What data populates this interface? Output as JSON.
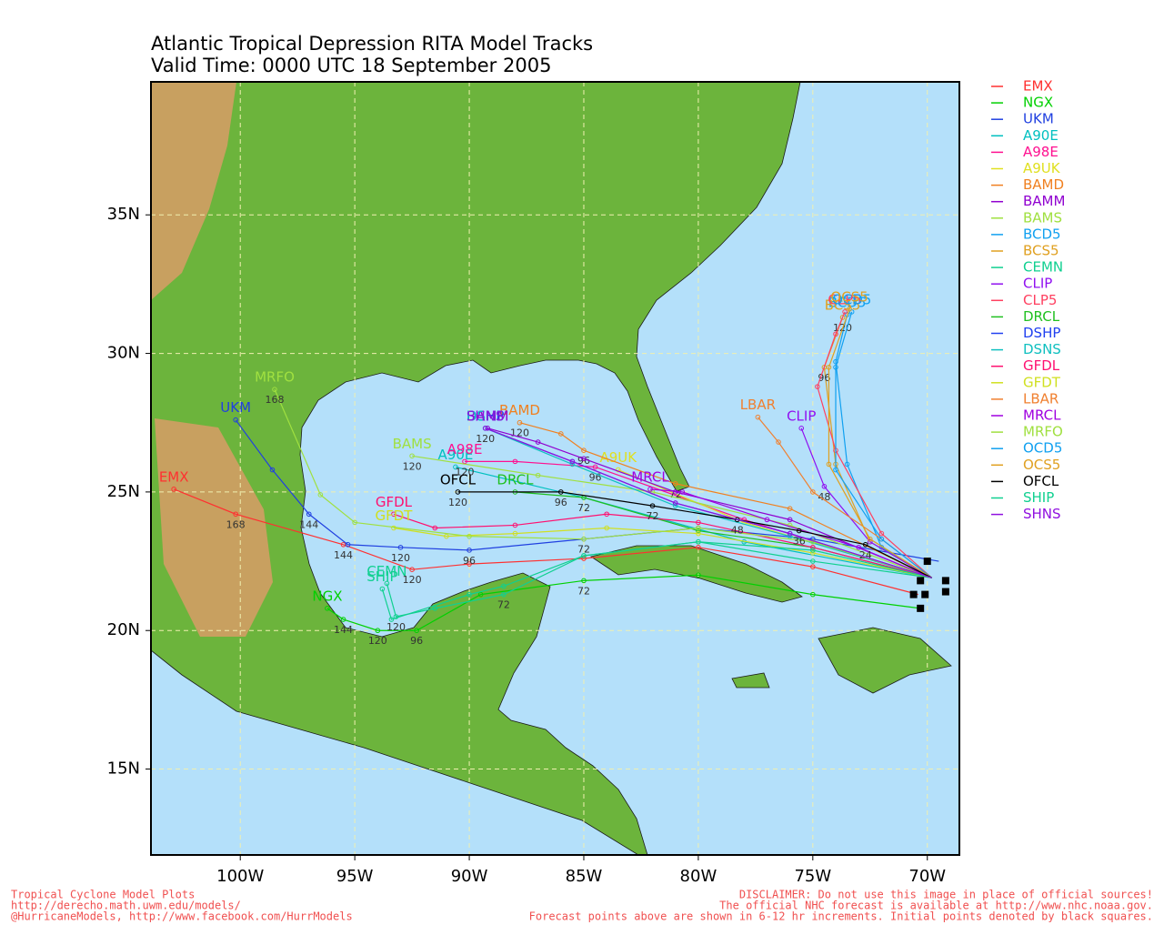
{
  "map": {
    "title": "Atlantic Tropical Depression RITA Model Tracks",
    "subtitle": "Valid Time: 0000 UTC 18 September 2005",
    "xlim": [
      -103.9,
      -68.6
    ],
    "ylim": [
      11.9,
      39.8
    ],
    "xticks": [
      {
        "value": -100,
        "label": "100W"
      },
      {
        "value": -95,
        "label": "95W"
      },
      {
        "value": -90,
        "label": "90W"
      },
      {
        "value": -85,
        "label": "85W"
      },
      {
        "value": -80,
        "label": "80W"
      },
      {
        "value": -75,
        "label": "75W"
      },
      {
        "value": -70,
        "label": "70W"
      }
    ],
    "yticks": [
      {
        "value": 15,
        "label": "15N"
      },
      {
        "value": 20,
        "label": "20N"
      },
      {
        "value": 25,
        "label": "25N"
      },
      {
        "value": 30,
        "label": "30N"
      },
      {
        "value": 35,
        "label": "35N"
      }
    ],
    "initial_points": [
      [
        -70.3,
        20.8
      ],
      [
        -70.1,
        21.3
      ],
      [
        -70.6,
        21.3
      ],
      [
        -69.2,
        21.4
      ],
      [
        -69.2,
        21.8
      ],
      [
        -70.3,
        21.8
      ],
      [
        -70.0,
        22.5
      ]
    ],
    "tracks": [
      {
        "name": "EMX",
        "color": "#ff3030",
        "points": [
          {
            "lon": -70.4,
            "lat": 21.3
          },
          {
            "lon": -75,
            "lat": 22.3
          },
          {
            "lon": -80,
            "lat": 23.0
          },
          {
            "lon": -85,
            "lat": 22.6
          },
          {
            "lon": -90,
            "lat": 22.4
          },
          {
            "lon": -92.5,
            "lat": 22.2,
            "hour": 120
          },
          {
            "lon": -95.5,
            "lat": 23.1,
            "hour": 144
          },
          {
            "lon": -100.2,
            "lat": 24.2,
            "hour": 168
          },
          {
            "lon": -102.9,
            "lat": 25.1
          }
        ]
      },
      {
        "name": "NGX",
        "color": "#00d000",
        "points": [
          {
            "lon": -70.3,
            "lat": 20.8
          },
          {
            "lon": -75,
            "lat": 21.3
          },
          {
            "lon": -80,
            "lat": 22.0
          },
          {
            "lon": -85,
            "lat": 21.8,
            "hour": 72
          },
          {
            "lon": -89.5,
            "lat": 21.3
          },
          {
            "lon": -92.3,
            "lat": 20.0,
            "hour": 96
          },
          {
            "lon": -94,
            "lat": 20.0,
            "hour": 120
          },
          {
            "lon": -95.5,
            "lat": 20.4,
            "hour": 144
          },
          {
            "lon": -96.2,
            "lat": 20.8
          }
        ]
      },
      {
        "name": "UKM",
        "color": "#2040e0",
        "points": [
          {
            "lon": -69.5,
            "lat": 22.5
          },
          {
            "lon": -75,
            "lat": 23.3
          },
          {
            "lon": -80,
            "lat": 23.7
          },
          {
            "lon": -85,
            "lat": 23.3,
            "hour": 72
          },
          {
            "lon": -90,
            "lat": 22.9,
            "hour": 96
          },
          {
            "lon": -93,
            "lat": 23.0,
            "hour": 120
          },
          {
            "lon": -95.3,
            "lat": 23.1
          },
          {
            "lon": -97,
            "lat": 24.2,
            "hour": 144
          },
          {
            "lon": -98.6,
            "lat": 25.8
          },
          {
            "lon": -100.2,
            "lat": 27.6
          }
        ]
      },
      {
        "name": "A90E",
        "color": "#00c0c0",
        "points": [
          {
            "lon": -69.8,
            "lat": 21.9
          },
          {
            "lon": -78,
            "lat": 23.2
          },
          {
            "lon": -85,
            "lat": 24.8,
            "hour": 72
          },
          {
            "lon": -90.6,
            "lat": 25.9
          }
        ]
      },
      {
        "name": "A98E",
        "color": "#ff1090",
        "points": [
          {
            "lon": -69.8,
            "lat": 21.9
          },
          {
            "lon": -78,
            "lat": 24.0
          },
          {
            "lon": -84.5,
            "lat": 25.9,
            "hour": 96
          },
          {
            "lon": -88,
            "lat": 26.1
          },
          {
            "lon": -90.2,
            "lat": 26.1,
            "hour": 120
          }
        ]
      },
      {
        "name": "A9UK",
        "color": "#e0e020",
        "points": [
          {
            "lon": -69.8,
            "lat": 21.9
          },
          {
            "lon": -78,
            "lat": 23.9
          },
          {
            "lon": -83.5,
            "lat": 25.8
          }
        ]
      },
      {
        "name": "BAMD",
        "color": "#f08020",
        "points": [
          {
            "lon": -69.8,
            "lat": 21.9
          },
          {
            "lon": -76,
            "lat": 24.4
          },
          {
            "lon": -81,
            "lat": 25.3,
            "hour": 72
          },
          {
            "lon": -85,
            "lat": 26.5,
            "hour": 96
          },
          {
            "lon": -86,
            "lat": 27.1
          },
          {
            "lon": -87.8,
            "lat": 27.5,
            "hour": 120
          }
        ]
      },
      {
        "name": "BAMM",
        "color": "#9000d0",
        "points": [
          {
            "lon": -69.8,
            "lat": 21.9
          },
          {
            "lon": -76,
            "lat": 24.0
          },
          {
            "lon": -81,
            "lat": 25.0
          },
          {
            "lon": -85,
            "lat": 26.2
          },
          {
            "lon": -87,
            "lat": 26.8
          },
          {
            "lon": -89.2,
            "lat": 27.3
          }
        ]
      },
      {
        "name": "BAMS",
        "color": "#a0e040",
        "points": [
          {
            "lon": -69.8,
            "lat": 21.9
          },
          {
            "lon": -76,
            "lat": 23.8
          },
          {
            "lon": -82,
            "lat": 25.0
          },
          {
            "lon": -87,
            "lat": 25.6
          },
          {
            "lon": -92.5,
            "lat": 26.3,
            "hour": 120
          }
        ]
      },
      {
        "name": "BCD5",
        "color": "#10a0f0",
        "points": [
          {
            "lon": -69.8,
            "lat": 21.9
          },
          {
            "lon": -72,
            "lat": 23
          },
          {
            "lon": -73.5,
            "lat": 26
          },
          {
            "lon": -74,
            "lat": 29.7
          },
          {
            "lon": -73.5,
            "lat": 31.4
          }
        ]
      },
      {
        "name": "BCS5",
        "color": "#e0a020",
        "points": [
          {
            "lon": -69.8,
            "lat": 21.9
          },
          {
            "lon": -72.5,
            "lat": 23.2
          },
          {
            "lon": -74,
            "lat": 26
          },
          {
            "lon": -74.5,
            "lat": 29.5,
            "hour": 96
          },
          {
            "lon": -73.7,
            "lat": 31.3,
            "hour": 120
          }
        ]
      },
      {
        "name": "CEMN",
        "color": "#10d090",
        "points": [
          {
            "lon": -69.8,
            "lat": 21.9
          },
          {
            "lon": -75,
            "lat": 22.5
          },
          {
            "lon": -80,
            "lat": 23.2
          },
          {
            "lon": -85,
            "lat": 22.7
          },
          {
            "lon": -88.5,
            "lat": 21.3,
            "hour": 72
          },
          {
            "lon": -91.5,
            "lat": 20.8
          },
          {
            "lon": -93.2,
            "lat": 20.5,
            "hour": 120
          },
          {
            "lon": -93.6,
            "lat": 21.7
          }
        ]
      },
      {
        "name": "CLIP",
        "color": "#9010f0",
        "points": [
          {
            "lon": -69.8,
            "lat": 21.9
          },
          {
            "lon": -72.5,
            "lat": 23.2
          },
          {
            "lon": -74.5,
            "lat": 25.2,
            "hour": 48
          },
          {
            "lon": -75.5,
            "lat": 27.3
          }
        ]
      },
      {
        "name": "CLP5",
        "color": "#ff4060",
        "points": [
          {
            "lon": -69.8,
            "lat": 21.9
          },
          {
            "lon": -72,
            "lat": 23.5
          },
          {
            "lon": -74,
            "lat": 26.5
          },
          {
            "lon": -74.8,
            "lat": 28.8
          },
          {
            "lon": -74,
            "lat": 30.7
          },
          {
            "lon": -73.6,
            "lat": 31.5
          }
        ]
      },
      {
        "name": "DRCL",
        "color": "#20c020",
        "points": [
          {
            "lon": -69.8,
            "lat": 21.9
          },
          {
            "lon": -75,
            "lat": 23.0
          },
          {
            "lon": -80,
            "lat": 23.6
          },
          {
            "lon": -85,
            "lat": 24.8
          },
          {
            "lon": -88,
            "lat": 25.0
          }
        ]
      },
      {
        "name": "DSHP",
        "color": "#2040f0",
        "points": [
          {
            "lon": -69.8,
            "lat": 21.9
          },
          {
            "lon": -76,
            "lat": 23.5
          },
          {
            "lon": -81,
            "lat": 24.6
          },
          {
            "lon": -85.5,
            "lat": 26.1
          },
          {
            "lon": -89.3,
            "lat": 27.3
          }
        ]
      },
      {
        "name": "DSNS",
        "color": "#10c0c0",
        "points": [
          {
            "lon": -69.8,
            "lat": 21.9
          },
          {
            "lon": -76,
            "lat": 23.4
          },
          {
            "lon": -81,
            "lat": 24.5
          },
          {
            "lon": -85.5,
            "lat": 26.0
          },
          {
            "lon": -89.3,
            "lat": 27.3
          }
        ]
      },
      {
        "name": "GFDL",
        "color": "#ff1070",
        "points": [
          {
            "lon": -69.8,
            "lat": 21.9
          },
          {
            "lon": -75,
            "lat": 23.0
          },
          {
            "lon": -80,
            "lat": 23.9
          },
          {
            "lon": -84,
            "lat": 24.2
          },
          {
            "lon": -88,
            "lat": 23.8
          },
          {
            "lon": -91.5,
            "lat": 23.7
          },
          {
            "lon": -93.3,
            "lat": 24.2
          }
        ]
      },
      {
        "name": "GFDT",
        "color": "#d0e020",
        "points": [
          {
            "lon": -69.8,
            "lat": 21.9
          },
          {
            "lon": -75,
            "lat": 22.8
          },
          {
            "lon": -80,
            "lat": 23.5
          },
          {
            "lon": -84,
            "lat": 23.7
          },
          {
            "lon": -88,
            "lat": 23.5
          },
          {
            "lon": -91,
            "lat": 23.4
          },
          {
            "lon": -93.3,
            "lat": 23.7
          }
        ]
      },
      {
        "name": "LBAR",
        "color": "#f08030",
        "points": [
          {
            "lon": -69.8,
            "lat": 21.9
          },
          {
            "lon": -72,
            "lat": 23.3
          },
          {
            "lon": -75,
            "lat": 25.0
          },
          {
            "lon": -76.5,
            "lat": 26.8
          },
          {
            "lon": -77.4,
            "lat": 27.7
          }
        ]
      },
      {
        "name": "MRCL",
        "color": "#a000e0",
        "points": [
          {
            "lon": -69.8,
            "lat": 21.9
          },
          {
            "lon": -73,
            "lat": 23.0
          },
          {
            "lon": -77,
            "lat": 24.0
          },
          {
            "lon": -80.7,
            "lat": 25.0
          },
          {
            "lon": -82.1,
            "lat": 25.1
          }
        ]
      },
      {
        "name": "MRFO",
        "color": "#a0e040",
        "points": [
          {
            "lon": -69.8,
            "lat": 21.9
          },
          {
            "lon": -75,
            "lat": 23.2
          },
          {
            "lon": -80,
            "lat": 23.7
          },
          {
            "lon": -85,
            "lat": 23.3
          },
          {
            "lon": -90,
            "lat": 23.4
          },
          {
            "lon": -95,
            "lat": 23.9
          },
          {
            "lon": -96.5,
            "lat": 24.9
          },
          {
            "lon": -98.5,
            "lat": 28.7,
            "hour": 168
          }
        ]
      },
      {
        "name": "OCD5",
        "color": "#10a0f0",
        "points": [
          {
            "lon": -69.8,
            "lat": 21.9
          },
          {
            "lon": -72,
            "lat": 23.3
          },
          {
            "lon": -74,
            "lat": 25.8
          },
          {
            "lon": -74,
            "lat": 29.5
          },
          {
            "lon": -73.3,
            "lat": 31.5
          }
        ]
      },
      {
        "name": "OCS5",
        "color": "#e0a020",
        "points": [
          {
            "lon": -69.8,
            "lat": 21.9
          },
          {
            "lon": -72.5,
            "lat": 23.3
          },
          {
            "lon": -74.3,
            "lat": 26
          },
          {
            "lon": -74.3,
            "lat": 29.5
          },
          {
            "lon": -73.4,
            "lat": 31.6
          }
        ]
      },
      {
        "name": "OFCL",
        "color": "#000000",
        "points": [
          {
            "lon": -69.8,
            "lat": 21.9
          },
          {
            "lon": -72.7,
            "lat": 23.1,
            "hour": 24
          },
          {
            "lon": -75.6,
            "lat": 23.6,
            "hour": 36
          },
          {
            "lon": -78.3,
            "lat": 24.0,
            "hour": 48
          },
          {
            "lon": -82,
            "lat": 24.5,
            "hour": 72
          },
          {
            "lon": -86,
            "lat": 25.0,
            "hour": 96
          },
          {
            "lon": -90.5,
            "lat": 25.0,
            "hour": 120
          }
        ]
      },
      {
        "name": "SHIP",
        "color": "#10d090",
        "points": [
          {
            "lon": -69.8,
            "lat": 21.9
          },
          {
            "lon": -75,
            "lat": 22.9
          },
          {
            "lon": -80,
            "lat": 23.2
          },
          {
            "lon": -85,
            "lat": 22.7
          },
          {
            "lon": -88.5,
            "lat": 21.6
          },
          {
            "lon": -90,
            "lat": 21.3
          },
          {
            "lon": -93.4,
            "lat": 20.4
          },
          {
            "lon": -93.8,
            "lat": 21.5
          }
        ]
      },
      {
        "name": "SHNS",
        "color": "#9010e0",
        "points": [
          {
            "lon": -69.8,
            "lat": 21.9
          },
          {
            "lon": -76,
            "lat": 23.5
          },
          {
            "lon": -81,
            "lat": 24.6
          },
          {
            "lon": -85.5,
            "lat": 26.1
          },
          {
            "lon": -89.3,
            "lat": 27.3,
            "hour": 120
          }
        ]
      }
    ],
    "footer_left": [
      "Tropical Cyclone Model Plots",
      "http://derecho.math.uwm.edu/models/",
      "@HurricaneModels, http://www.facebook.com/HurrModels"
    ],
    "footer_right": [
      "DISCLAIMER: Do not use this image in place of official sources!",
      "The official NHC forecast is available at http://www.nhc.noaa.gov.",
      "Forecast points above are shown in 6-12 hr increments. Initial points denoted by black squares."
    ]
  }
}
